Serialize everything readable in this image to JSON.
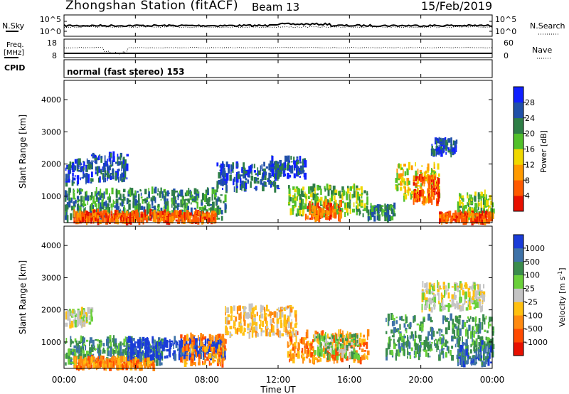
{
  "header": {
    "title": "Zhongshan Station (fitACF)",
    "beam": "Beam 13",
    "date": "15/Feb/2019"
  },
  "nsky_panel": {
    "left_label": "N.Sky",
    "left_ticks": [
      "10^5",
      "10^0"
    ],
    "right_ticks": [
      "10^5",
      "10^0"
    ],
    "right_label": "N.Search"
  },
  "freq_panel": {
    "left_label_line1": "Freq.",
    "left_label_line2": "[MHz]",
    "left_ticks": [
      "18",
      "8"
    ],
    "right_ticks": [
      "60",
      "0"
    ],
    "right_label": "Nave"
  },
  "cpid_panel": {
    "label": "CPID",
    "text": "normal (fast stereo) 153"
  },
  "time_axis": {
    "label": "Time UT",
    "ticks": [
      "00:00",
      "04:00",
      "08:00",
      "12:00",
      "16:00",
      "20:00",
      "00:00"
    ]
  },
  "chart_data": [
    {
      "type": "heatmap",
      "name": "power",
      "ylabel": "Slant Range [km]",
      "yticks": [
        1000,
        2000,
        3000,
        4000
      ],
      "ylim": [
        180,
        4600
      ],
      "xlim_hours": [
        0,
        24
      ],
      "colorbar": {
        "label": "Power [dB]",
        "tick_labels": [
          "4",
          "8",
          "12",
          "16",
          "20",
          "24",
          "28"
        ],
        "colors": [
          "#1020ff",
          "#2050a8",
          "#2e7e46",
          "#52c02a",
          "#f0d800",
          "#ff9a00",
          "#ff5a00",
          "#e81000"
        ]
      },
      "scatter_regions": [
        {
          "t": [
            0.0,
            1.5
          ],
          "r": [
            1400,
            2100
          ],
          "level": 1
        },
        {
          "t": [
            0.0,
            9.0
          ],
          "r": [
            300,
            1200
          ],
          "level": 2
        },
        {
          "t": [
            0.5,
            8.5
          ],
          "r": [
            200,
            500
          ],
          "level": 6
        },
        {
          "t": [
            1.5,
            3.5
          ],
          "r": [
            1500,
            2300
          ],
          "level": 1
        },
        {
          "t": [
            8.5,
            12.0
          ],
          "r": [
            1200,
            2000
          ],
          "level": 1
        },
        {
          "t": [
            11.5,
            13.5
          ],
          "r": [
            1600,
            2200
          ],
          "level": 1
        },
        {
          "t": [
            12.5,
            17.0
          ],
          "r": [
            400,
            1300
          ],
          "level": 3
        },
        {
          "t": [
            13.5,
            15.5
          ],
          "r": [
            300,
            800
          ],
          "level": 6
        },
        {
          "t": [
            17.0,
            18.5
          ],
          "r": [
            300,
            700
          ],
          "level": 2
        },
        {
          "t": [
            18.5,
            21.0
          ],
          "r": [
            900,
            2000
          ],
          "level": 4
        },
        {
          "t": [
            19.5,
            21.0
          ],
          "r": [
            800,
            1600
          ],
          "level": 6
        },
        {
          "t": [
            20.5,
            22.0
          ],
          "r": [
            2300,
            2750
          ],
          "level": 1
        },
        {
          "t": [
            22.0,
            24.0
          ],
          "r": [
            300,
            1100
          ],
          "level": 3
        },
        {
          "t": [
            21.0,
            24.0
          ],
          "r": [
            200,
            450
          ],
          "level": 6
        }
      ]
    },
    {
      "type": "heatmap",
      "name": "velocity",
      "ylabel": "Slant Range [km]",
      "yticks": [
        1000,
        2000,
        3000,
        4000
      ],
      "ylim": [
        180,
        4600
      ],
      "xlim_hours": [
        0,
        24
      ],
      "colorbar": {
        "label": "Velocity [m s",
        "label_sup": "-1",
        "label_end": "]",
        "tick_labels": [
          "1000",
          "500",
          "100",
          "25",
          "-25",
          "-100",
          "-500",
          "-1000"
        ],
        "colors": [
          "#1a3cd8",
          "#3e72a8",
          "#3a8c4c",
          "#6ad03a",
          "#c4c4c4",
          "#ffc010",
          "#ff8a10",
          "#ff4a00",
          "#e81000"
        ]
      },
      "scatter_regions": [
        {
          "t": [
            0.0,
            1.5
          ],
          "r": [
            1500,
            2000
          ],
          "level": 4
        },
        {
          "t": [
            0.0,
            5.5
          ],
          "r": [
            300,
            1100
          ],
          "level": 2
        },
        {
          "t": [
            0.5,
            5.0
          ],
          "r": [
            200,
            500
          ],
          "level": 6
        },
        {
          "t": [
            3.5,
            9.0
          ],
          "r": [
            500,
            1100
          ],
          "level": 0
        },
        {
          "t": [
            6.5,
            9.0
          ],
          "r": [
            300,
            1200
          ],
          "level": 6
        },
        {
          "t": [
            9.0,
            13.0
          ],
          "r": [
            1200,
            2100
          ],
          "level": 5
        },
        {
          "t": [
            12.5,
            17.0
          ],
          "r": [
            400,
            1300
          ],
          "level": 6
        },
        {
          "t": [
            14.0,
            16.5
          ],
          "r": [
            500,
            1200
          ],
          "level": 3
        },
        {
          "t": [
            18.0,
            24.0
          ],
          "r": [
            500,
            1800
          ],
          "level": 2
        },
        {
          "t": [
            20.0,
            23.5
          ],
          "r": [
            2000,
            2800
          ],
          "level": 4
        },
        {
          "t": [
            22.0,
            24.0
          ],
          "r": [
            300,
            1000
          ],
          "level": 1
        }
      ]
    }
  ]
}
